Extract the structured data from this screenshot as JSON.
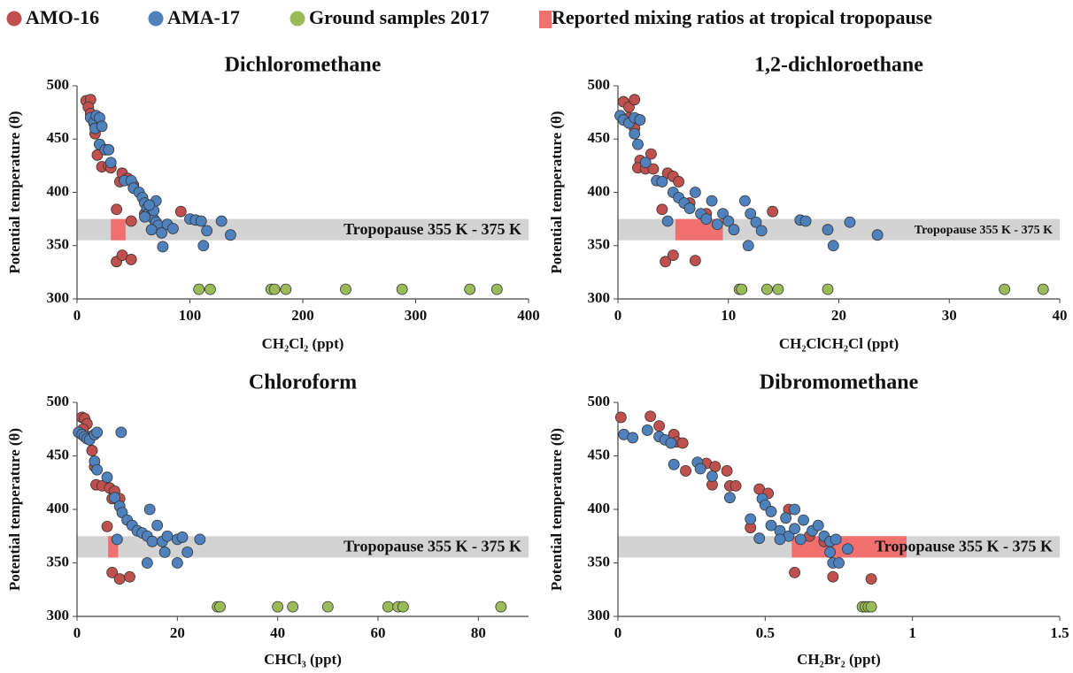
{
  "chart_data": [
    {
      "type": "scatter",
      "title": "Dichloromethane",
      "xlabel": "CH₂Cl₂ (ppt)",
      "ylabel": "Potential temperature (θ)",
      "xlim": [
        0,
        400
      ],
      "xticks": [
        0,
        100,
        200,
        300,
        400
      ],
      "ylim": [
        300,
        500
      ],
      "yticks": [
        300,
        350,
        400,
        450,
        500
      ],
      "series": [
        {
          "name": "AMO-16",
          "color": "#c0504d",
          "x": [
            8,
            12,
            10,
            12,
            15,
            16,
            20,
            18,
            22,
            28,
            30,
            38,
            40,
            45,
            50,
            35,
            48,
            92,
            35,
            40,
            48,
            60,
            70
          ],
          "values": [
            486,
            487,
            480,
            474,
            465,
            455,
            445,
            435,
            424,
            425,
            423,
            410,
            418,
            413,
            407,
            384,
            373,
            382,
            335,
            341,
            337,
            380,
            372
          ]
        },
        {
          "name": "AMA-17",
          "color": "#4f81bd",
          "x": [
            12,
            15,
            17,
            20,
            16,
            22,
            20,
            25,
            30,
            28,
            42,
            48,
            50,
            55,
            58,
            60,
            62,
            63,
            65,
            68,
            70,
            72,
            66,
            75,
            68,
            70,
            80,
            85,
            100,
            105,
            110,
            115,
            112,
            128,
            136,
            76,
            60,
            64
          ],
          "values": [
            470,
            466,
            472,
            470,
            460,
            462,
            445,
            440,
            428,
            440,
            411,
            411,
            404,
            400,
            395,
            390,
            385,
            380,
            378,
            375,
            372,
            369,
            365,
            362,
            383,
            392,
            370,
            366,
            375,
            374,
            373,
            364,
            350,
            373,
            360,
            349,
            377,
            388
          ]
        },
        {
          "name": "Ground samples 2017",
          "color": "#9bbb59",
          "x": [
            108,
            118,
            172,
            175,
            185,
            238,
            288,
            348,
            372
          ],
          "values": [
            309,
            309,
            309,
            309,
            309,
            309,
            309,
            309,
            309
          ]
        }
      ],
      "band": {
        "label": "Tropopause 355 K - 375 K",
        "ylim": [
          355,
          375
        ],
        "color": "#d3d3d3"
      },
      "reported": {
        "name": "Reported mixing ratios at tropical tropopause",
        "color": "#f07070",
        "xrange": [
          30,
          43
        ]
      }
    },
    {
      "type": "scatter",
      "title": "1,2-dichloroethane",
      "xlabel": "CH₂ClCH₂Cl (ppt)",
      "ylabel": "Potential temperature (θ)",
      "xlim": [
        0,
        40
      ],
      "xticks": [
        0,
        10,
        20,
        30,
        40
      ],
      "ylim": [
        300,
        500
      ],
      "yticks": [
        300,
        350,
        400,
        450,
        500
      ],
      "series": [
        {
          "color": "#c0504d",
          "x": [
            0.5,
            1,
            1.5,
            1,
            1.5,
            2,
            1.8,
            2.5,
            3,
            3.2,
            4.5,
            5,
            5.5,
            4,
            4.3,
            5,
            7,
            14,
            6.5,
            8
          ],
          "values": [
            485,
            480,
            487,
            470,
            460,
            430,
            423,
            422,
            436,
            422,
            418,
            415,
            410,
            384,
            335,
            341,
            336,
            382,
            390,
            380
          ]
        },
        {
          "color": "#4f81bd",
          "x": [
            0.2,
            0.5,
            1,
            1.5,
            2,
            1.5,
            1.8,
            2.5,
            3.5,
            4,
            5,
            5.5,
            6,
            6.5,
            7,
            7.5,
            8,
            8.5,
            9,
            9.5,
            10,
            10.5,
            11.5,
            12,
            12.5,
            13,
            11.8,
            16.5,
            17,
            19,
            19.5,
            21,
            23.5,
            4.5
          ],
          "values": [
            472,
            468,
            465,
            470,
            468,
            455,
            445,
            428,
            411,
            410,
            400,
            395,
            390,
            385,
            400,
            380,
            375,
            392,
            370,
            380,
            373,
            365,
            392,
            380,
            372,
            364,
            350,
            374,
            373,
            365,
            350,
            372,
            360,
            373
          ]
        },
        {
          "color": "#9bbb59",
          "x": [
            11,
            11.2,
            13.5,
            14.5,
            19,
            35,
            38.5
          ],
          "values": [
            309,
            309,
            309,
            309,
            309,
            309,
            309
          ]
        }
      ],
      "band": {
        "label": "Tropopause 355 K - 375 K",
        "ylim": [
          355,
          375
        ],
        "color": "#d3d3d3"
      },
      "reported": {
        "color": "#f07070",
        "xrange": [
          5.2,
          9.5
        ]
      }
    },
    {
      "type": "scatter",
      "title": "Chloroform",
      "xlabel": "CHCl₃ (ppt)",
      "ylabel": "Potential temperature (θ)",
      "xlim": [
        0,
        90
      ],
      "xticks": [
        0,
        20,
        40,
        60,
        80
      ],
      "ylim": [
        300,
        500
      ],
      "yticks": [
        300,
        350,
        400,
        450,
        500
      ],
      "series": [
        {
          "color": "#c0504d",
          "x": [
            1,
            1.5,
            2,
            1.2,
            2.5,
            3,
            3.5,
            3.8,
            5,
            6.5,
            7.5,
            8.5,
            6,
            7,
            8.5,
            10.5,
            7
          ],
          "values": [
            486,
            485,
            480,
            475,
            468,
            455,
            440,
            423,
            422,
            420,
            417,
            410,
            384,
            341,
            335,
            337,
            410
          ]
        },
        {
          "color": "#4f81bd",
          "x": [
            0.3,
            1,
            1.5,
            2,
            2.5,
            3.5,
            4,
            3.5,
            4,
            6,
            7.5,
            8.5,
            8.8,
            9,
            10,
            11,
            12,
            13,
            14,
            15,
            14.5,
            16,
            17,
            17.5,
            18,
            20,
            21,
            22,
            20,
            24.5,
            14,
            8
          ],
          "values": [
            472,
            470,
            468,
            466,
            465,
            470,
            472,
            445,
            437,
            430,
            411,
            403,
            472,
            397,
            390,
            385,
            380,
            378,
            375,
            370,
            400,
            385,
            370,
            360,
            375,
            372,
            374,
            360,
            350,
            372,
            350,
            372
          ]
        },
        {
          "color": "#9bbb59",
          "x": [
            28,
            28.5,
            40,
            43,
            50,
            62,
            64,
            65,
            84.5
          ],
          "values": [
            309,
            309,
            309,
            309,
            309,
            309,
            309,
            309,
            309
          ]
        }
      ],
      "band": {
        "label": "Tropopause 355 K - 375 K",
        "ylim": [
          355,
          375
        ],
        "color": "#d3d3d3"
      },
      "reported": {
        "color": "#f07070",
        "xrange": [
          6.2,
          8.2
        ]
      }
    },
    {
      "type": "scatter",
      "title": "Dibromomethane",
      "xlabel": "CH₂Br₂ (ppt)",
      "ylabel": "Potential temperature (θ)",
      "xlim": [
        0,
        1.5
      ],
      "xticks": [
        0,
        0.5,
        1,
        1.5
      ],
      "ylim": [
        300,
        500
      ],
      "yticks": [
        300,
        350,
        400,
        450,
        500
      ],
      "series": [
        {
          "color": "#c0504d",
          "x": [
            0.01,
            0.11,
            0.14,
            0.19,
            0.2,
            0.22,
            0.23,
            0.3,
            0.33,
            0.32,
            0.37,
            0.38,
            0.4,
            0.48,
            0.51,
            0.45,
            0.58,
            0.6,
            0.73,
            0.86,
            0.65,
            0.7
          ],
          "values": [
            486,
            487,
            478,
            470,
            463,
            462,
            436,
            443,
            440,
            423,
            436,
            422,
            422,
            419,
            415,
            383,
            400,
            341,
            337,
            335,
            375,
            370
          ]
        },
        {
          "color": "#4f81bd",
          "x": [
            0.02,
            0.05,
            0.1,
            0.14,
            0.16,
            0.18,
            0.19,
            0.27,
            0.28,
            0.32,
            0.38,
            0.45,
            0.49,
            0.5,
            0.52,
            0.52,
            0.55,
            0.57,
            0.58,
            0.6,
            0.62,
            0.63,
            0.66,
            0.68,
            0.7,
            0.72,
            0.74,
            0.72,
            0.73,
            0.75,
            0.78,
            0.48,
            0.55,
            0.6
          ],
          "values": [
            470,
            467,
            474,
            468,
            465,
            462,
            442,
            444,
            438,
            431,
            411,
            391,
            410,
            404,
            398,
            385,
            380,
            392,
            375,
            382,
            372,
            390,
            380,
            385,
            375,
            370,
            372,
            360,
            350,
            350,
            363,
            373,
            372,
            400
          ]
        },
        {
          "color": "#9bbb59",
          "x": [
            0.83,
            0.84,
            0.85,
            0.86
          ],
          "values": [
            309,
            309,
            309,
            309
          ]
        }
      ],
      "band": {
        "label": "Tropopause 355 K - 375 K",
        "ylim": [
          355,
          375
        ],
        "color": "#d3d3d3"
      },
      "reported": {
        "color": "#f07070",
        "xrange": [
          0.59,
          0.98
        ]
      }
    }
  ]
}
